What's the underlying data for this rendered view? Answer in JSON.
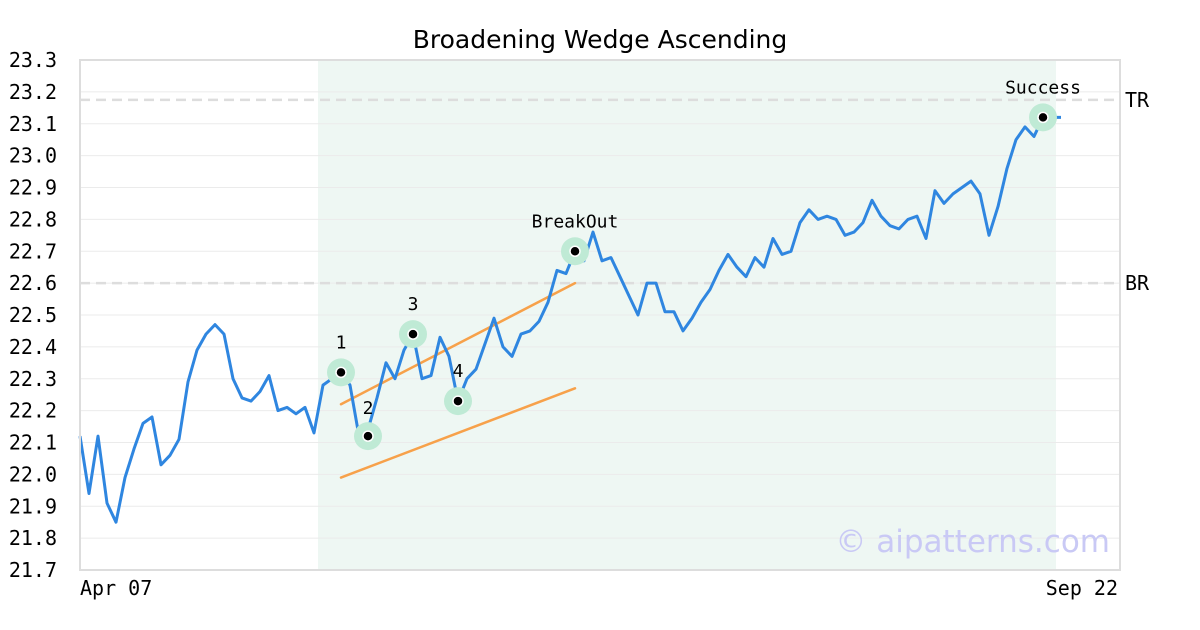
{
  "chart_data": {
    "type": "line",
    "title": "Broadening Wedge Ascending",
    "xlabel": "",
    "ylabel": "",
    "ylim": [
      21.7,
      23.3
    ],
    "y_ticks": [
      "23.3",
      "23.2",
      "23.1",
      "23.0",
      "22.9",
      "22.8",
      "22.7",
      "22.6",
      "22.5",
      "22.4",
      "22.3",
      "22.2",
      "22.1",
      "22.0",
      "21.9",
      "21.8",
      "21.7"
    ],
    "x_labels": {
      "start": "Apr 07",
      "end": "Sep 22"
    },
    "grid": true,
    "watermark": "© aipatterns.com",
    "colors": {
      "line": "#2f86e0",
      "pattern_zone": "#eef7f3",
      "trendline": "#f7a14a",
      "marker_halo": "#bfead5",
      "level_line": "#dddddd"
    },
    "series": [
      {
        "values": [
          22.12,
          21.94,
          22.12,
          21.91,
          21.85,
          21.99,
          22.08,
          22.16,
          22.18,
          22.03,
          22.06,
          22.11,
          22.29,
          22.39,
          22.44,
          22.47,
          22.44,
          22.3,
          22.24,
          22.23,
          22.26,
          22.31,
          22.2,
          22.21,
          22.19,
          22.21,
          22.13,
          22.28,
          22.3,
          22.32,
          22.28,
          22.12,
          22.14,
          22.24,
          22.35,
          22.3,
          22.39,
          22.44,
          22.3,
          22.31,
          22.43,
          22.37,
          22.23,
          22.3,
          22.33,
          22.41,
          22.49,
          22.4,
          22.37,
          22.44,
          22.45,
          22.48,
          22.54,
          22.64,
          22.63,
          22.7,
          22.67,
          22.76,
          22.67,
          22.68,
          22.62,
          22.56,
          22.5,
          22.6,
          22.6,
          22.51,
          22.51,
          22.45,
          22.49,
          22.54,
          22.58,
          22.64,
          22.69,
          22.65,
          22.62,
          22.68,
          22.65,
          22.74,
          22.69,
          22.7,
          22.79,
          22.83,
          22.8,
          22.81,
          22.8,
          22.75,
          22.76,
          22.79,
          22.86,
          22.81,
          22.78,
          22.77,
          22.8,
          22.81,
          22.74,
          22.89,
          22.85,
          22.88,
          22.9,
          22.92,
          22.88,
          22.75,
          22.84,
          22.96,
          23.05,
          23.09,
          23.06,
          23.12,
          23.12,
          23.12
        ]
      }
    ],
    "pattern_zone": {
      "start_index": 27,
      "end_index": 108
    },
    "levels": [
      {
        "label": "TR",
        "value": 23.175
      },
      {
        "label": "BR",
        "value": 22.6
      }
    ],
    "trendlines": [
      {
        "from": {
          "index": 29,
          "value": 22.22
        },
        "to": {
          "index": 55,
          "value": 22.6
        }
      },
      {
        "from": {
          "index": 29,
          "value": 21.99
        },
        "to": {
          "index": 55,
          "value": 22.27
        }
      }
    ],
    "points": [
      {
        "label": "1",
        "index": 29,
        "value": 22.32
      },
      {
        "label": "2",
        "index": 32,
        "value": 22.12
      },
      {
        "label": "3",
        "index": 37,
        "value": 22.44
      },
      {
        "label": "4",
        "index": 42,
        "value": 22.23
      },
      {
        "label": "BreakOut",
        "index": 55,
        "value": 22.7
      },
      {
        "label": "Success",
        "index": 107,
        "value": 23.12
      }
    ]
  }
}
